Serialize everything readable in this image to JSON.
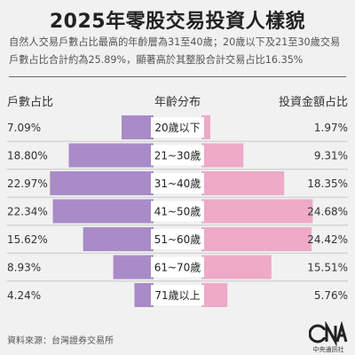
{
  "title": "2025年零股交易投資人樣貌",
  "subtitle": "自然人交易戶數占比最高的年齡層為31至40歲；20歲以下及21至30歲交易戶數占比合計約為25.89%，顯著高於其整股合計交易占比16.35%",
  "footer": {
    "source": "資料來源：台灣證券交易所",
    "logo_text": "中央通訊社"
  },
  "colors": {
    "left_bar": "#a98bc7",
    "right_bar": "#eeaac6",
    "label_box": "#ffffff",
    "background": "#f1f1f1"
  },
  "chart_data": {
    "type": "bar",
    "headers": {
      "left": "戶數占比",
      "center": "年齡分布",
      "right": "投資金額占比"
    },
    "categories": [
      "20歲以下",
      "21~30歲",
      "31~40歲",
      "41~50歲",
      "51~60歲",
      "61~70歲",
      "71歲以上"
    ],
    "series": [
      {
        "name": "戶數占比",
        "values": [
          7.09,
          18.8,
          22.97,
          22.34,
          15.62,
          8.93,
          4.24
        ],
        "labels": [
          "7.09%",
          "18.80%",
          "22.97%",
          "22.34%",
          "15.62%",
          "8.93%",
          "4.24%"
        ]
      },
      {
        "name": "投資金額占比",
        "values": [
          1.97,
          9.31,
          18.35,
          24.68,
          24.42,
          15.51,
          5.76
        ],
        "labels": [
          "1.97%",
          "9.31%",
          "18.35%",
          "24.68%",
          "24.42%",
          "15.51%",
          "5.76%"
        ]
      }
    ]
  }
}
